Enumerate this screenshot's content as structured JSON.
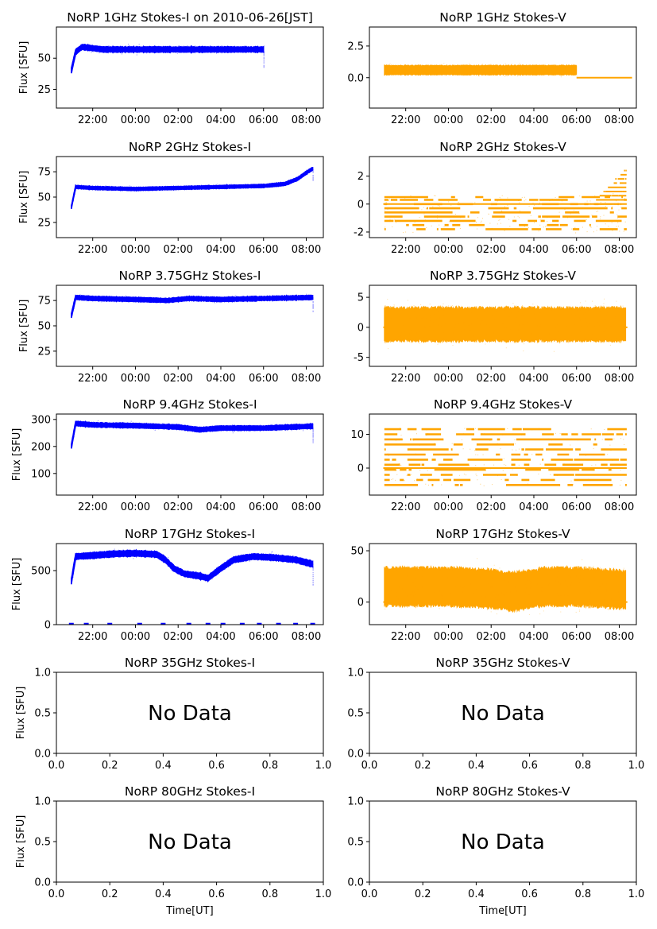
{
  "figure": {
    "xlabel": "Time[UT]",
    "colors": {
      "stokes_i": "#0000ff",
      "stokes_v": "#ffa500",
      "axis": "#000000",
      "background": "#ffffff"
    }
  },
  "chart_data": [
    {
      "type": "scatter",
      "column": "left",
      "row": 0,
      "title": "NoRP 1GHz Stokes-I on 2010-06-26[JST]",
      "ylabel": "Flux [SFU]",
      "has_data": true,
      "xticks": [
        "22:00",
        "00:00",
        "02:00",
        "04:00",
        "06:00",
        "08:00"
      ],
      "xlim_hours": [
        20.3,
        32.8
      ],
      "yticks": [
        25,
        50
      ],
      "ylim": [
        10,
        75
      ],
      "color": "#0000ff",
      "series": {
        "start_hour": 21.0,
        "end_hour": 30.0,
        "initial": 40,
        "baseline": 57,
        "band": 2,
        "points": [
          [
            21.0,
            40
          ],
          [
            21.2,
            55
          ],
          [
            21.5,
            59
          ],
          [
            22.5,
            57
          ],
          [
            24.0,
            57
          ],
          [
            26.0,
            57
          ],
          [
            28.0,
            57
          ],
          [
            30.0,
            57
          ]
        ]
      }
    },
    {
      "type": "scatter",
      "column": "right",
      "row": 0,
      "title": "NoRP 1GHz Stokes-V",
      "ylabel": "",
      "has_data": true,
      "xticks": [
        "22:00",
        "00:00",
        "02:00",
        "04:00",
        "06:00",
        "08:00"
      ],
      "xlim_hours": [
        20.3,
        32.8
      ],
      "yticks": [
        0.0,
        2.5
      ],
      "yticklabels": [
        "0.0",
        "2.5"
      ],
      "ylim": [
        -2.4,
        4.0
      ],
      "color": "#ffa500",
      "series": {
        "start_hour": 21.0,
        "end_hour": 30.0,
        "baseline": 0.6,
        "band": 0.4,
        "flat_until_hour": 32.6,
        "flat_value": 0.0,
        "points": [
          [
            21.0,
            0.6
          ],
          [
            24.0,
            0.6
          ],
          [
            27.0,
            0.6
          ],
          [
            30.0,
            0.6
          ]
        ]
      }
    },
    {
      "type": "scatter",
      "column": "left",
      "row": 1,
      "title": "NoRP 2GHz Stokes-I",
      "ylabel": "Flux [SFU]",
      "has_data": true,
      "xticks": [
        "22:00",
        "00:00",
        "02:00",
        "04:00",
        "06:00",
        "08:00"
      ],
      "xlim_hours": [
        20.3,
        32.8
      ],
      "yticks": [
        25,
        50,
        75
      ],
      "ylim": [
        10,
        90
      ],
      "color": "#0000ff",
      "series": {
        "start_hour": 21.0,
        "end_hour": 32.3,
        "initial": 40,
        "band": 1.5,
        "points": [
          [
            21.0,
            40
          ],
          [
            21.2,
            60
          ],
          [
            22.0,
            59
          ],
          [
            24.0,
            58
          ],
          [
            26.0,
            59
          ],
          [
            28.0,
            60
          ],
          [
            30.0,
            61
          ],
          [
            31.0,
            63
          ],
          [
            31.6,
            68
          ],
          [
            32.0,
            74
          ],
          [
            32.3,
            78
          ]
        ]
      }
    },
    {
      "type": "scatter",
      "column": "right",
      "row": 1,
      "title": "NoRP 2GHz Stokes-V",
      "ylabel": "",
      "has_data": true,
      "xticks": [
        "22:00",
        "00:00",
        "02:00",
        "04:00",
        "06:00",
        "08:00"
      ],
      "xlim_hours": [
        20.3,
        32.8
      ],
      "yticks": [
        -2,
        0,
        2
      ],
      "ylim": [
        -2.4,
        3.4
      ],
      "color": "#ffa500",
      "series": {
        "start_hour": 21.0,
        "end_hour": 32.3,
        "levels": [
          -1.8,
          -1.5,
          -1.2,
          -0.9,
          -0.6,
          -0.3,
          0.0,
          0.3,
          0.5
        ],
        "rise_start_hour": 30.8,
        "rise_max": 2.5,
        "flat_value": 0.0
      }
    },
    {
      "type": "scatter",
      "column": "left",
      "row": 2,
      "title": "NoRP 3.75GHz Stokes-I",
      "ylabel": "Flux [SFU]",
      "has_data": true,
      "xticks": [
        "22:00",
        "00:00",
        "02:00",
        "04:00",
        "06:00",
        "08:00"
      ],
      "xlim_hours": [
        20.3,
        32.8
      ],
      "yticks": [
        25,
        50,
        75
      ],
      "ylim": [
        10,
        90
      ],
      "color": "#0000ff",
      "series": {
        "start_hour": 21.0,
        "end_hour": 32.3,
        "initial": 60,
        "band": 2,
        "points": [
          [
            21.0,
            60
          ],
          [
            21.2,
            78
          ],
          [
            22.0,
            77
          ],
          [
            24.0,
            76
          ],
          [
            25.5,
            75
          ],
          [
            26.5,
            77
          ],
          [
            28.0,
            76
          ],
          [
            30.0,
            77
          ],
          [
            32.3,
            78
          ]
        ]
      }
    },
    {
      "type": "scatter",
      "column": "right",
      "row": 2,
      "title": "NoRP 3.75GHz Stokes-V",
      "ylabel": "",
      "has_data": true,
      "xticks": [
        "22:00",
        "00:00",
        "02:00",
        "04:00",
        "06:00",
        "08:00"
      ],
      "xlim_hours": [
        20.3,
        32.8
      ],
      "yticks": [
        -5,
        0,
        5
      ],
      "ylim": [
        -6.5,
        7.0
      ],
      "color": "#ffa500",
      "series": {
        "start_hour": 21.0,
        "end_hour": 32.3,
        "baseline": 0.5,
        "band": 3.0,
        "flat_value": 0.0
      }
    },
    {
      "type": "scatter",
      "column": "left",
      "row": 3,
      "title": "NoRP 9.4GHz Stokes-I",
      "ylabel": "Flux [SFU]",
      "has_data": true,
      "xticks": [
        "22:00",
        "00:00",
        "02:00",
        "04:00",
        "06:00",
        "08:00"
      ],
      "xlim_hours": [
        20.3,
        32.8
      ],
      "yticks": [
        100,
        200,
        300
      ],
      "ylim": [
        20,
        320
      ],
      "color": "#0000ff",
      "series": {
        "start_hour": 21.0,
        "end_hour": 32.3,
        "initial": 200,
        "band": 8,
        "points": [
          [
            21.0,
            200
          ],
          [
            21.2,
            285
          ],
          [
            22.0,
            280
          ],
          [
            24.0,
            277
          ],
          [
            26.0,
            272
          ],
          [
            27.0,
            262
          ],
          [
            28.0,
            268
          ],
          [
            30.0,
            268
          ],
          [
            32.3,
            275
          ]
        ]
      }
    },
    {
      "type": "scatter",
      "column": "right",
      "row": 3,
      "title": "NoRP 9.4GHz Stokes-V",
      "ylabel": "",
      "has_data": true,
      "xticks": [
        "22:00",
        "00:00",
        "02:00",
        "04:00",
        "06:00",
        "08:00"
      ],
      "xlim_hours": [
        20.3,
        32.8
      ],
      "yticks": [
        0,
        10
      ],
      "ylim": [
        -8,
        16
      ],
      "color": "#ffa500",
      "series": {
        "start_hour": 21.0,
        "end_hour": 32.3,
        "levels": [
          -5,
          -3.5,
          -2,
          -0.5,
          1,
          2.5,
          4,
          5.5,
          7,
          8.5,
          10,
          11.5
        ],
        "flat_value": 0
      }
    },
    {
      "type": "scatter",
      "column": "left",
      "row": 4,
      "title": "NoRP 17GHz Stokes-I",
      "ylabel": "Flux [SFU]",
      "has_data": true,
      "xticks": [
        "22:00",
        "00:00",
        "02:00",
        "04:00",
        "06:00",
        "08:00"
      ],
      "xlim_hours": [
        20.3,
        32.8
      ],
      "yticks": [
        0,
        500
      ],
      "ylim": [
        0,
        750
      ],
      "color": "#0000ff",
      "series": {
        "start_hour": 21.0,
        "end_hour": 32.3,
        "initial": 400,
        "band": 25,
        "points": [
          [
            21.0,
            400
          ],
          [
            21.2,
            630
          ],
          [
            22.0,
            640
          ],
          [
            23.0,
            655
          ],
          [
            24.0,
            660
          ],
          [
            25.0,
            650
          ],
          [
            25.4,
            600
          ],
          [
            25.8,
            520
          ],
          [
            26.3,
            470
          ],
          [
            27.0,
            450
          ],
          [
            27.4,
            430
          ],
          [
            28.0,
            520
          ],
          [
            28.6,
            600
          ],
          [
            29.5,
            630
          ],
          [
            30.5,
            620
          ],
          [
            31.5,
            600
          ],
          [
            32.3,
            560
          ]
        ]
      },
      "near_zero_hours": [
        21.0,
        21.7,
        22.8,
        24.2,
        25.3,
        26.5,
        27.4,
        28.1,
        29.0,
        29.8,
        30.7,
        31.5,
        32.3
      ]
    },
    {
      "type": "scatter",
      "column": "right",
      "row": 4,
      "title": "NoRP 17GHz Stokes-V",
      "ylabel": "",
      "has_data": true,
      "xticks": [
        "22:00",
        "00:00",
        "02:00",
        "04:00",
        "06:00",
        "08:00"
      ],
      "xlim_hours": [
        20.3,
        32.8
      ],
      "yticks": [
        0,
        50
      ],
      "ylim": [
        -22,
        57
      ],
      "color": "#ffa500",
      "series": {
        "start_hour": 21.0,
        "end_hour": 32.3,
        "band": 20,
        "points": [
          [
            21.0,
            15
          ],
          [
            24.0,
            15
          ],
          [
            26.0,
            13
          ],
          [
            27.0,
            10
          ],
          [
            28.5,
            15
          ],
          [
            30.0,
            15
          ],
          [
            32.3,
            12
          ]
        ],
        "flat_value": 0
      }
    },
    {
      "type": "scatter",
      "column": "left",
      "row": 5,
      "title": "NoRP 35GHz Stokes-I",
      "ylabel": "Flux [SFU]",
      "has_data": false,
      "message": "No Data",
      "xticks": [
        "0.0",
        "0.2",
        "0.4",
        "0.6",
        "0.8",
        "1.0"
      ],
      "yticks": [
        "0.0",
        "0.5",
        "1.0"
      ],
      "xlim": [
        0,
        1
      ],
      "ylim": [
        0,
        1
      ]
    },
    {
      "type": "scatter",
      "column": "right",
      "row": 5,
      "title": "NoRP 35GHz Stokes-V",
      "ylabel": "",
      "has_data": false,
      "message": "No Data",
      "xticks": [
        "0.0",
        "0.2",
        "0.4",
        "0.6",
        "0.8",
        "1.0"
      ],
      "yticks": [
        "0.0",
        "0.5",
        "1.0"
      ],
      "xlim": [
        0,
        1
      ],
      "ylim": [
        0,
        1
      ]
    },
    {
      "type": "scatter",
      "column": "left",
      "row": 6,
      "title": "NoRP 80GHz Stokes-I",
      "ylabel": "Flux [SFU]",
      "has_data": false,
      "message": "No Data",
      "xticks": [
        "0.0",
        "0.2",
        "0.4",
        "0.6",
        "0.8",
        "1.0"
      ],
      "yticks": [
        "0.0",
        "0.5",
        "1.0"
      ],
      "xlim": [
        0,
        1
      ],
      "ylim": [
        0,
        1
      ],
      "xlabel": "Time[UT]"
    },
    {
      "type": "scatter",
      "column": "right",
      "row": 6,
      "title": "NoRP 80GHz Stokes-V",
      "ylabel": "",
      "has_data": false,
      "message": "No Data",
      "xticks": [
        "0.0",
        "0.2",
        "0.4",
        "0.6",
        "0.8",
        "1.0"
      ],
      "yticks": [
        "0.0",
        "0.5",
        "1.0"
      ],
      "xlim": [
        0,
        1
      ],
      "ylim": [
        0,
        1
      ],
      "xlabel": "Time[UT]"
    }
  ]
}
